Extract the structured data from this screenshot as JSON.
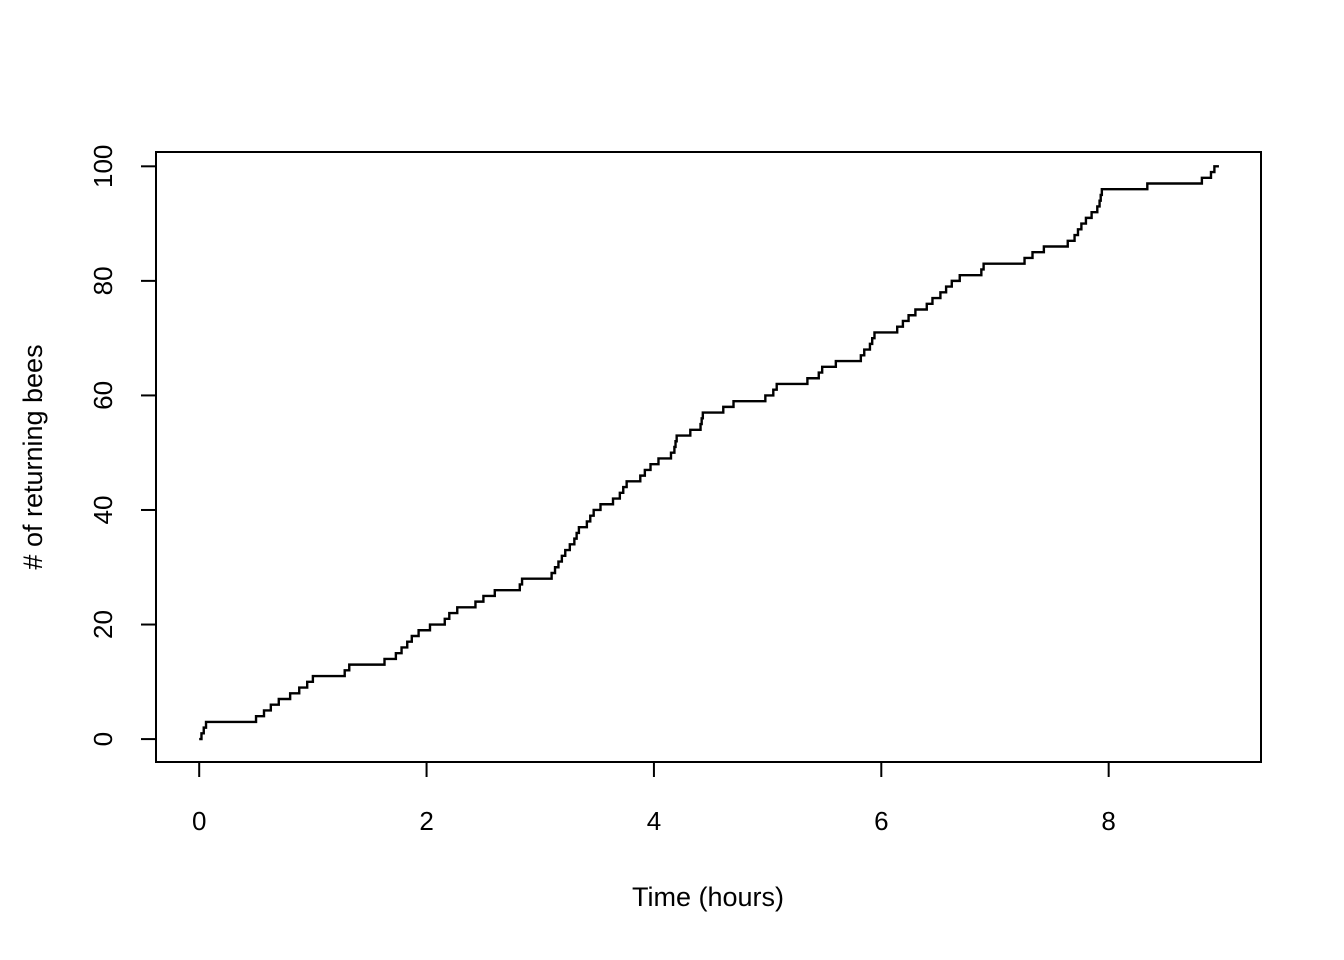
{
  "chart_data": {
    "type": "line",
    "subtype": "step-post",
    "title": "",
    "xlabel": "Time (hours)",
    "ylabel": "# of returning bees",
    "x_ticks": [
      0,
      2,
      4,
      6,
      8
    ],
    "y_ticks": [
      0,
      20,
      40,
      60,
      80,
      100
    ],
    "xlim": [
      -0.38,
      9.34
    ],
    "ylim": [
      -4,
      102.5
    ],
    "grid": false,
    "legend": false,
    "background": "#ffffff",
    "line_color": "#000000",
    "axis_color": "#000000",
    "series": [
      {
        "name": "cumulative # of returning bees",
        "start": [
          0,
          0
        ],
        "final_count": 100,
        "end_time": 8.97,
        "arrival_times": [
          0.02,
          0.04,
          0.06,
          0.5,
          0.57,
          0.63,
          0.7,
          0.8,
          0.88,
          0.95,
          1.0,
          1.28,
          1.32,
          1.63,
          1.73,
          1.78,
          1.83,
          1.87,
          1.93,
          2.03,
          2.16,
          2.2,
          2.27,
          2.43,
          2.5,
          2.6,
          2.82,
          2.84,
          3.1,
          3.13,
          3.16,
          3.19,
          3.22,
          3.26,
          3.3,
          3.32,
          3.34,
          3.41,
          3.44,
          3.47,
          3.53,
          3.64,
          3.7,
          3.73,
          3.76,
          3.88,
          3.92,
          3.97,
          4.04,
          4.15,
          4.18,
          4.19,
          4.2,
          4.32,
          4.41,
          4.42,
          4.43,
          4.61,
          4.7,
          4.98,
          5.05,
          5.08,
          5.35,
          5.45,
          5.48,
          5.6,
          5.82,
          5.85,
          5.9,
          5.92,
          5.94,
          6.14,
          6.19,
          6.24,
          6.3,
          6.4,
          6.45,
          6.52,
          6.57,
          6.62,
          6.69,
          6.88,
          6.9,
          7.26,
          7.33,
          7.43,
          7.64,
          7.7,
          7.73,
          7.76,
          7.8,
          7.85,
          7.9,
          7.92,
          7.93,
          7.94,
          8.34,
          8.82,
          8.9,
          8.93
        ]
      }
    ]
  }
}
